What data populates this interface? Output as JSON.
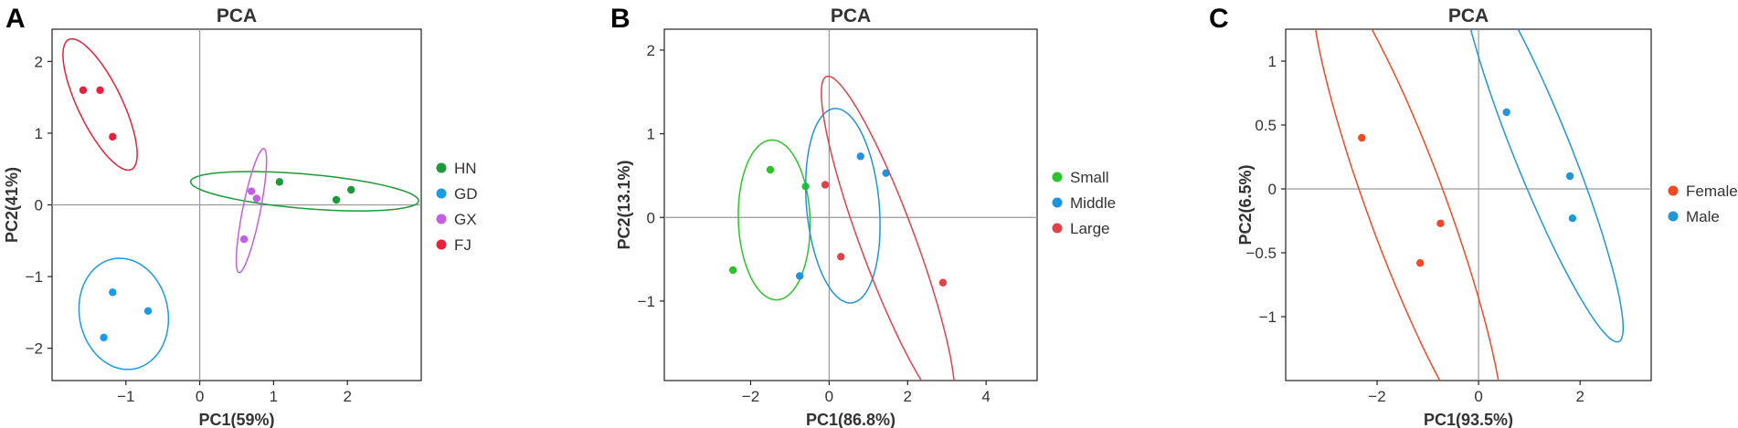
{
  "chart_data": [
    {
      "panel": "A",
      "type": "scatter",
      "title": "PCA",
      "xlabel": "PC1(59%)",
      "ylabel": "PC2(41%)",
      "xlim": [
        -2.0,
        3.0
      ],
      "ylim": [
        -2.45,
        2.45
      ],
      "xticks": [
        -1,
        0,
        1,
        2
      ],
      "yticks": [
        -2,
        -1,
        0,
        1,
        2
      ],
      "grid": false,
      "zero_lines": true,
      "legend_position": "right",
      "series": [
        {
          "name": "HN",
          "color": "#1b9a3a",
          "points": [
            [
              1.08,
              0.32
            ],
            [
              1.85,
              0.07
            ],
            [
              2.05,
              0.21
            ]
          ],
          "ellipse": {
            "cx": 1.42,
            "cy": 0.19,
            "rx": 1.55,
            "ry": 0.24,
            "angle_deg": -5
          }
        },
        {
          "name": "GD",
          "color": "#1a9be6",
          "points": [
            [
              -1.18,
              -1.22
            ],
            [
              -0.7,
              -1.48
            ],
            [
              -1.3,
              -1.85
            ]
          ],
          "ellipse": {
            "cx": -1.03,
            "cy": -1.52,
            "rx": 0.6,
            "ry": 0.78,
            "angle_deg": 10
          }
        },
        {
          "name": "GX",
          "color": "#c45ee4",
          "points": [
            [
              0.7,
              0.19
            ],
            [
              0.77,
              0.09
            ],
            [
              0.6,
              -0.48
            ]
          ],
          "ellipse": {
            "cx": 0.7,
            "cy": -0.08,
            "rx": 0.12,
            "ry": 0.88,
            "angle_deg": -11
          }
        },
        {
          "name": "FJ",
          "color": "#e8203a",
          "points": [
            [
              -1.58,
              1.6
            ],
            [
              -1.35,
              1.6
            ],
            [
              -1.18,
              0.95
            ]
          ],
          "ellipse": {
            "cx": -1.35,
            "cy": 1.4,
            "rx": 0.3,
            "ry": 1.0,
            "angle_deg": 25
          }
        }
      ]
    },
    {
      "panel": "B",
      "type": "scatter",
      "title": "PCA",
      "xlabel": "PC1(86.8%)",
      "ylabel": "PC2(13.1%)",
      "xlim": [
        -4.2,
        5.3
      ],
      "ylim": [
        -1.95,
        2.25
      ],
      "xticks": [
        -2,
        0,
        2,
        4
      ],
      "yticks": [
        -1,
        0,
        1,
        2
      ],
      "grid": false,
      "zero_lines": true,
      "legend_position": "right",
      "series": [
        {
          "name": "Small",
          "color": "#2bc42b",
          "points": [
            [
              -1.5,
              0.57
            ],
            [
              -0.6,
              0.37
            ],
            [
              -2.45,
              -0.63
            ]
          ],
          "ellipse": {
            "cx": -1.4,
            "cy": -0.03,
            "rx": 0.9,
            "ry": 0.97,
            "angle_deg": 27
          }
        },
        {
          "name": "Middle",
          "color": "#1f93e0",
          "points": [
            [
              0.8,
              0.73
            ],
            [
              1.45,
              0.53
            ],
            [
              -0.75,
              -0.7
            ]
          ],
          "ellipse": {
            "cx": 0.35,
            "cy": 0.14,
            "rx": 0.9,
            "ry": 1.2,
            "angle_deg": 22
          }
        },
        {
          "name": "Large",
          "color": "#e0424a",
          "points": [
            [
              -0.1,
              0.39
            ],
            [
              0.3,
              -0.47
            ],
            [
              2.9,
              -0.78
            ]
          ],
          "ellipse": {
            "cx": 1.5,
            "cy": -0.3,
            "rx": 2.55,
            "ry": 0.58,
            "angle_deg": -50
          }
        }
      ]
    },
    {
      "panel": "C",
      "type": "scatter",
      "title": "PCA",
      "xlabel": "PC1(93.5%)",
      "ylabel": "PC2(6.5%)",
      "xlim": [
        -3.8,
        3.4
      ],
      "ylim": [
        -1.5,
        1.25
      ],
      "xticks": [
        -2,
        0,
        2
      ],
      "yticks": [
        -1,
        -0.5,
        0,
        0.5,
        1
      ],
      "grid": false,
      "zero_lines": true,
      "legend_position": "right",
      "series": [
        {
          "name": "Female",
          "color": "#f04a23",
          "points": [
            [
              -2.3,
              0.4
            ],
            [
              -0.75,
              -0.27
            ],
            [
              -1.15,
              -0.58
            ]
          ],
          "ellipse": {
            "cx": -1.4,
            "cy": -0.15,
            "rx": 2.6,
            "ry": 0.6,
            "angle_deg": -45
          }
        },
        {
          "name": "Male",
          "color": "#1f97d8",
          "points": [
            [
              0.55,
              0.6
            ],
            [
              1.8,
              0.1
            ],
            [
              1.85,
              -0.23
            ]
          ],
          "ellipse": {
            "cx": 1.25,
            "cy": 0.3,
            "rx": 2.15,
            "ry": 0.42,
            "angle_deg": -43
          }
        }
      ]
    }
  ]
}
